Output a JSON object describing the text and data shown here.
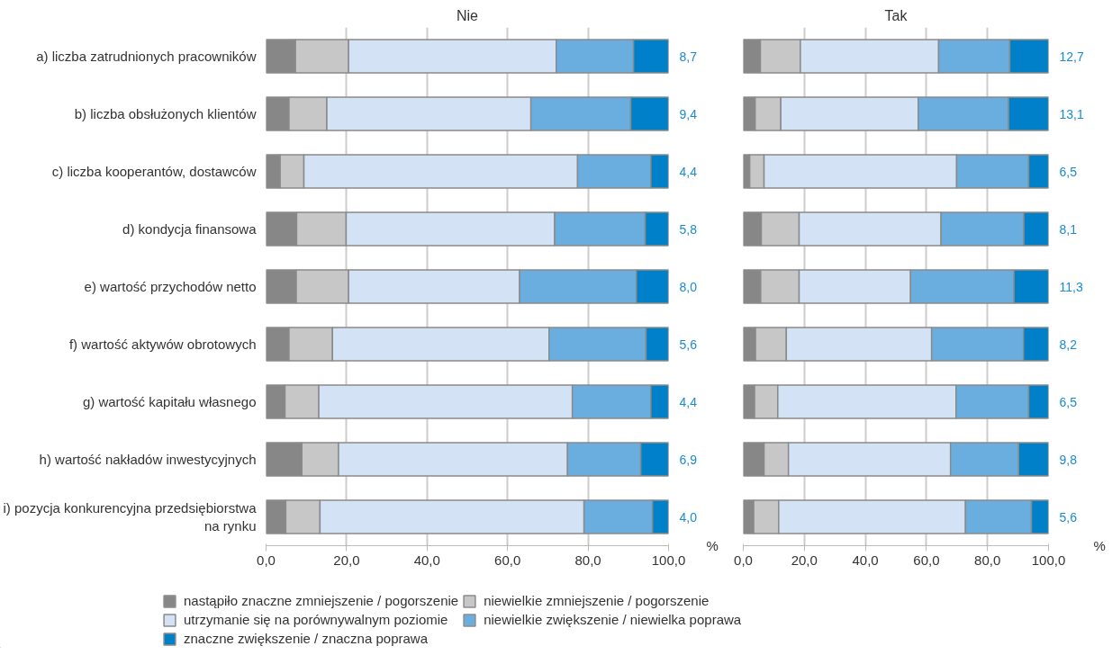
{
  "chart_data": [
    {
      "type": "bar",
      "orientation": "horizontal",
      "stacked": true,
      "title": "Nie",
      "grid": "x",
      "legend": "bottom",
      "categories": [
        "a) liczba zatrudnionych pracowników",
        "b) liczba obsłużonych klientów",
        "c) liczba kooperantów, dostawców",
        "d) kondycja finansowa",
        "e) wartość przychodów netto",
        "f) wartość aktywów obrotowych",
        "g) wartość kapitału własnego",
        "h) wartość nakładów inwestycyjnych",
        "i) pozycja konkurencyjna przedsiębiorstwa na rynku"
      ],
      "xlim": [
        0,
        100
      ],
      "xticks": [
        {
          "value": 0,
          "label": "0,0"
        },
        {
          "value": 20,
          "label": "20,0"
        },
        {
          "value": 40,
          "label": "40,0"
        },
        {
          "value": 60,
          "label": "60,0"
        },
        {
          "value": 80,
          "label": "80,0"
        },
        {
          "value": 100,
          "label": "100,0"
        }
      ],
      "annotations": [
        "%"
      ],
      "series": [
        {
          "name": "nastąpiło znaczne zmniejszenie / pogorszenie",
          "color": "#878787",
          "values": [
            7.3,
            5.7,
            3.5,
            7.6,
            7.5,
            5.7,
            4.7,
            8.9,
            4.9
          ]
        },
        {
          "name": "niewielkie zmniejszenie / pogorszenie",
          "color": "#c6c7c6",
          "values": [
            13.2,
            9.4,
            5.9,
            12.3,
            13.0,
            10.8,
            8.4,
            9.1,
            8.5
          ]
        },
        {
          "name": "utrzymanie się na porównywalnym poziomie",
          "color": "#d3e3f5",
          "values": [
            51.6,
            50.7,
            68.0,
            51.8,
            42.5,
            53.8,
            63.0,
            56.9,
            65.6
          ]
        },
        {
          "name": "niewielkie zwiększenie / niewielka poprawa",
          "color": "#6aaee0",
          "values": [
            19.2,
            24.8,
            18.2,
            22.5,
            29.0,
            24.1,
            19.5,
            18.2,
            17.0
          ]
        },
        {
          "name": "znaczne zwiększenie / znaczna poprawa",
          "color": "#0080c8",
          "values": [
            8.7,
            9.4,
            4.4,
            5.8,
            8.0,
            5.6,
            4.4,
            6.9,
            4.0
          ],
          "value_labels": [
            "8,7",
            "9,4",
            "4,4",
            "5,8",
            "8,0",
            "5,6",
            "4,4",
            "6,9",
            "4,0"
          ]
        }
      ]
    },
    {
      "type": "bar",
      "orientation": "horizontal",
      "stacked": true,
      "title": "Tak",
      "grid": "x",
      "tick_labels": "x",
      "categories": [
        "a) liczba zatrudnionych pracowników",
        "b) liczba obsłużonych klientów",
        "c) liczba kooperantów, dostawców",
        "d) kondycja finansowa",
        "e) wartość przychodów netto",
        "f) wartość aktywów obrotowych",
        "g) wartość kapitału własnego",
        "h) wartość nakładów inwestycyjnych",
        "i) pozycja konkurencyjna przedsiębiorstwa na rynku"
      ],
      "xlim": [
        0,
        100
      ],
      "xticks": [
        {
          "value": 0,
          "label": "0,0"
        },
        {
          "value": 20,
          "label": "20,0"
        },
        {
          "value": 40,
          "label": "40,0"
        },
        {
          "value": 60,
          "label": "60,0"
        },
        {
          "value": 80,
          "label": "80,0"
        },
        {
          "value": 100,
          "label": "100,0"
        }
      ],
      "annotations": [
        "%"
      ],
      "series": [
        {
          "color": "#878787",
          "values": [
            5.6,
            3.9,
            2.1,
            5.9,
            5.7,
            4.0,
            3.7,
            6.8,
            3.4
          ]
        },
        {
          "color": "#c6c7c6",
          "values": [
            13.1,
            8.4,
            4.7,
            12.4,
            12.6,
            10.1,
            7.6,
            8.0,
            8.2
          ]
        },
        {
          "color": "#d3e3f5",
          "values": [
            45.3,
            45.0,
            63.1,
            46.5,
            36.5,
            47.6,
            58.4,
            53.1,
            61.2
          ]
        },
        {
          "color": "#6aaee0",
          "values": [
            23.3,
            29.6,
            23.6,
            27.1,
            33.9,
            30.1,
            23.8,
            22.3,
            21.6
          ]
        },
        {
          "color": "#0080c8",
          "values": [
            12.7,
            13.1,
            6.5,
            8.1,
            11.3,
            8.2,
            6.5,
            9.8,
            5.6
          ],
          "value_labels": [
            "12,7",
            "13,1",
            "6,5",
            "8,1",
            "11,3",
            "8,2",
            "6,5",
            "9,8",
            "5,6"
          ]
        }
      ]
    }
  ]
}
